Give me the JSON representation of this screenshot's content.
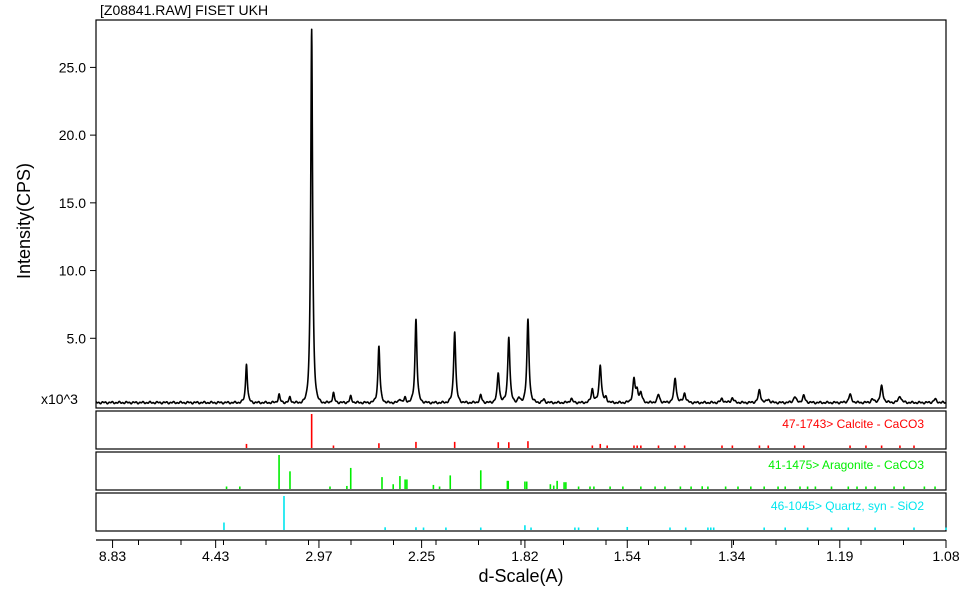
{
  "chart_data": {
    "type": "line",
    "title": "[Z08841.RAW] FISET UKH",
    "ylabel": "Intensity(CPS)",
    "xlabel": "d-Scale(A)",
    "y_multiplier_label": "x10^3",
    "y_unit_scale": 1000,
    "ylim": [
      0,
      28500
    ],
    "y_ticks": [
      {
        "value": 5000,
        "label": "5.0"
      },
      {
        "value": 10000,
        "label": "10.0"
      },
      {
        "value": 15000,
        "label": "15.0"
      },
      {
        "value": 20000,
        "label": "20.0"
      },
      {
        "value": 25000,
        "label": "25.0"
      }
    ],
    "x_axis_note": "d-spacing axis decreasing left to right (2-theta linear scale)",
    "x_ticks": [
      {
        "d": 8.83,
        "label": "8.83"
      },
      {
        "d": 4.43,
        "label": "4.43"
      },
      {
        "d": 2.97,
        "label": "2.97"
      },
      {
        "d": 2.25,
        "label": "2.25"
      },
      {
        "d": 1.82,
        "label": "1.82"
      },
      {
        "d": 1.54,
        "label": "1.54"
      },
      {
        "d": 1.34,
        "label": "1.34"
      },
      {
        "d": 1.19,
        "label": "1.19"
      },
      {
        "d": 1.08,
        "label": "1.08"
      }
    ],
    "pattern_color": "#000000",
    "baseline": 250,
    "peaks": [
      {
        "d": 3.86,
        "i": 2900
      },
      {
        "d": 3.4,
        "i": 600
      },
      {
        "d": 3.27,
        "i": 400
      },
      {
        "d": 3.04,
        "i": 27600
      },
      {
        "d": 2.84,
        "i": 700
      },
      {
        "d": 2.7,
        "i": 450
      },
      {
        "d": 2.5,
        "i": 4200
      },
      {
        "d": 2.37,
        "i": 300
      },
      {
        "d": 2.34,
        "i": 350
      },
      {
        "d": 2.28,
        "i": 6200
      },
      {
        "d": 2.09,
        "i": 5300
      },
      {
        "d": 1.98,
        "i": 550
      },
      {
        "d": 1.913,
        "i": 2200
      },
      {
        "d": 1.875,
        "i": 4900
      },
      {
        "d": 1.84,
        "i": 350
      },
      {
        "d": 1.81,
        "i": 6100
      },
      {
        "d": 1.76,
        "i": 250
      },
      {
        "d": 1.68,
        "i": 300
      },
      {
        "d": 1.624,
        "i": 1000
      },
      {
        "d": 1.604,
        "i": 2800
      },
      {
        "d": 1.59,
        "i": 350
      },
      {
        "d": 1.525,
        "i": 1700
      },
      {
        "d": 1.518,
        "i": 800
      },
      {
        "d": 1.51,
        "i": 700
      },
      {
        "d": 1.473,
        "i": 600
      },
      {
        "d": 1.44,
        "i": 1800
      },
      {
        "d": 1.422,
        "i": 700
      },
      {
        "d": 1.356,
        "i": 300
      },
      {
        "d": 1.339,
        "i": 350
      },
      {
        "d": 1.297,
        "i": 900
      },
      {
        "d": 1.284,
        "i": 250
      },
      {
        "d": 1.247,
        "i": 450
      },
      {
        "d": 1.235,
        "i": 500
      },
      {
        "d": 1.178,
        "i": 600
      },
      {
        "d": 1.153,
        "i": 250
      },
      {
        "d": 1.143,
        "i": 1200
      },
      {
        "d": 1.124,
        "i": 500
      },
      {
        "d": 1.09,
        "i": 250
      }
    ],
    "series": [
      {
        "name": "47-1743> Calcite - CaCO3",
        "color": "#ff0000",
        "lines": [
          {
            "d": 3.86,
            "i": 12
          },
          {
            "d": 3.04,
            "i": 100
          },
          {
            "d": 2.84,
            "i": 3
          },
          {
            "d": 2.5,
            "i": 14
          },
          {
            "d": 2.28,
            "i": 18
          },
          {
            "d": 2.09,
            "i": 18
          },
          {
            "d": 1.913,
            "i": 17
          },
          {
            "d": 1.875,
            "i": 17
          },
          {
            "d": 1.81,
            "i": 20
          },
          {
            "d": 1.624,
            "i": 6
          },
          {
            "d": 1.604,
            "i": 12
          },
          {
            "d": 1.587,
            "i": 4
          },
          {
            "d": 1.525,
            "i": 6
          },
          {
            "d": 1.518,
            "i": 3
          },
          {
            "d": 1.51,
            "i": 6
          },
          {
            "d": 1.473,
            "i": 5
          },
          {
            "d": 1.44,
            "i": 6
          },
          {
            "d": 1.422,
            "i": 4
          },
          {
            "d": 1.356,
            "i": 3
          },
          {
            "d": 1.339,
            "i": 4
          },
          {
            "d": 1.297,
            "i": 4
          },
          {
            "d": 1.284,
            "i": 3
          },
          {
            "d": 1.247,
            "i": 3
          },
          {
            "d": 1.235,
            "i": 3
          },
          {
            "d": 1.178,
            "i": 3
          },
          {
            "d": 1.16,
            "i": 3
          },
          {
            "d": 1.143,
            "i": 3
          },
          {
            "d": 1.124,
            "i": 3
          },
          {
            "d": 1.11,
            "i": 2
          }
        ]
      },
      {
        "name": "41-1475> Aragonite - CaCO3",
        "color": "#00ee00",
        "lines": [
          {
            "d": 4.21,
            "i": 5
          },
          {
            "d": 3.97,
            "i": 4
          },
          {
            "d": 3.4,
            "i": 100
          },
          {
            "d": 3.27,
            "i": 52
          },
          {
            "d": 2.87,
            "i": 6
          },
          {
            "d": 2.73,
            "i": 9
          },
          {
            "d": 2.7,
            "i": 62
          },
          {
            "d": 2.48,
            "i": 35
          },
          {
            "d": 2.41,
            "i": 14
          },
          {
            "d": 2.37,
            "i": 38
          },
          {
            "d": 2.34,
            "i": 28
          },
          {
            "d": 2.33,
            "i": 28
          },
          {
            "d": 2.19,
            "i": 12
          },
          {
            "d": 2.16,
            "i": 6
          },
          {
            "d": 2.11,
            "i": 40
          },
          {
            "d": 1.98,
            "i": 55
          },
          {
            "d": 1.88,
            "i": 24
          },
          {
            "d": 1.877,
            "i": 24
          },
          {
            "d": 1.82,
            "i": 22
          },
          {
            "d": 1.814,
            "i": 22
          },
          {
            "d": 1.74,
            "i": 14
          },
          {
            "d": 1.73,
            "i": 10
          },
          {
            "d": 1.72,
            "i": 24
          },
          {
            "d": 1.7,
            "i": 20
          },
          {
            "d": 1.695,
            "i": 20
          },
          {
            "d": 1.66,
            "i": 6
          },
          {
            "d": 1.63,
            "i": 4
          },
          {
            "d": 1.62,
            "i": 4
          },
          {
            "d": 1.58,
            "i": 4
          },
          {
            "d": 1.55,
            "i": 4
          },
          {
            "d": 1.51,
            "i": 6
          },
          {
            "d": 1.48,
            "i": 4
          },
          {
            "d": 1.46,
            "i": 6
          },
          {
            "d": 1.43,
            "i": 5
          },
          {
            "d": 1.41,
            "i": 6
          },
          {
            "d": 1.39,
            "i": 8
          },
          {
            "d": 1.38,
            "i": 4
          },
          {
            "d": 1.35,
            "i": 6
          },
          {
            "d": 1.33,
            "i": 4
          },
          {
            "d": 1.31,
            "i": 5
          },
          {
            "d": 1.29,
            "i": 6
          },
          {
            "d": 1.27,
            "i": 4
          },
          {
            "d": 1.26,
            "i": 6
          },
          {
            "d": 1.24,
            "i": 4
          },
          {
            "d": 1.23,
            "i": 4
          },
          {
            "d": 1.22,
            "i": 5
          },
          {
            "d": 1.2,
            "i": 5
          },
          {
            "d": 1.18,
            "i": 6
          },
          {
            "d": 1.17,
            "i": 4
          },
          {
            "d": 1.16,
            "i": 5
          },
          {
            "d": 1.15,
            "i": 4
          },
          {
            "d": 1.13,
            "i": 5
          },
          {
            "d": 1.12,
            "i": 6
          },
          {
            "d": 1.1,
            "i": 4
          },
          {
            "d": 1.09,
            "i": 5
          }
        ]
      },
      {
        "name": "46-1045> Quartz, syn - SiO2",
        "color": "#00e5ee",
        "lines": [
          {
            "d": 4.26,
            "i": 22
          },
          {
            "d": 3.34,
            "i": 100
          },
          {
            "d": 2.46,
            "i": 8
          },
          {
            "d": 2.28,
            "i": 8
          },
          {
            "d": 2.24,
            "i": 4
          },
          {
            "d": 2.13,
            "i": 6
          },
          {
            "d": 1.98,
            "i": 4
          },
          {
            "d": 1.82,
            "i": 14
          },
          {
            "d": 1.8,
            "i": 3
          },
          {
            "d": 1.67,
            "i": 4
          },
          {
            "d": 1.66,
            "i": 3
          },
          {
            "d": 1.61,
            "i": 3
          },
          {
            "d": 1.54,
            "i": 9
          },
          {
            "d": 1.45,
            "i": 3
          },
          {
            "d": 1.42,
            "i": 3
          },
          {
            "d": 1.38,
            "i": 6
          },
          {
            "d": 1.375,
            "i": 7
          },
          {
            "d": 1.37,
            "i": 5
          },
          {
            "d": 1.29,
            "i": 3
          },
          {
            "d": 1.26,
            "i": 3
          },
          {
            "d": 1.23,
            "i": 3
          },
          {
            "d": 1.2,
            "i": 3
          },
          {
            "d": 1.18,
            "i": 4
          },
          {
            "d": 1.15,
            "i": 3
          },
          {
            "d": 1.11,
            "i": 3
          },
          {
            "d": 1.08,
            "i": 4
          }
        ]
      }
    ]
  }
}
